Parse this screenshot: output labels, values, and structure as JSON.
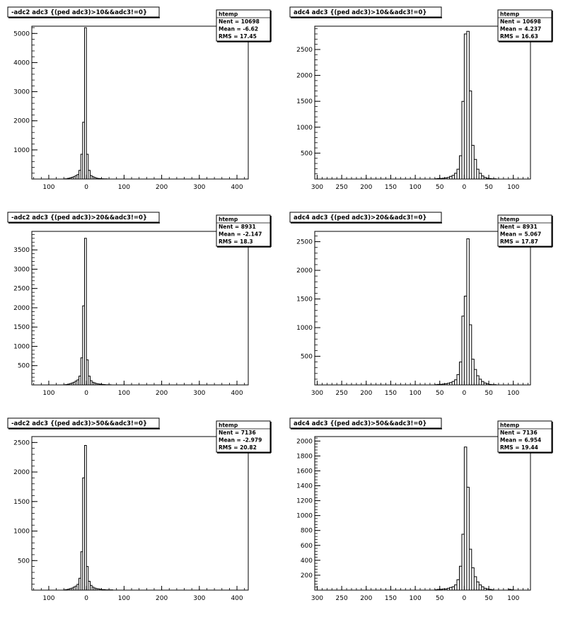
{
  "chart_data": [
    {
      "type": "bar",
      "title": "-adc2 adc3 {(ped adc3)>10&&adc3!=0}",
      "stats": {
        "label": "htemp",
        "entries": "Nent = 10698",
        "mean": "Mean = -6.62",
        "rms": "RMS = 17.45"
      },
      "xlim": [
        -145,
        430
      ],
      "ylim": [
        0,
        5250
      ],
      "xticks": [
        -100,
        0,
        100,
        200,
        300,
        400
      ],
      "xtick_labels": [
        "100",
        "0",
        "100",
        "200",
        "300",
        "400"
      ],
      "yticks": [
        1000,
        2000,
        3000,
        4000,
        5000
      ],
      "ytick_labels": [
        "1000",
        "2000",
        "3000",
        "4000",
        "5000"
      ],
      "bin_width": 5,
      "bins": [
        [
          -60,
          5
        ],
        [
          -55,
          10
        ],
        [
          -50,
          25
        ],
        [
          -45,
          40
        ],
        [
          -40,
          60
        ],
        [
          -35,
          80
        ],
        [
          -30,
          120
        ],
        [
          -25,
          150
        ],
        [
          -20,
          300
        ],
        [
          -15,
          850
        ],
        [
          -10,
          1950
        ],
        [
          -5,
          5200
        ],
        [
          0,
          850
        ],
        [
          5,
          300
        ],
        [
          10,
          120
        ],
        [
          15,
          80
        ],
        [
          20,
          50
        ],
        [
          25,
          30
        ],
        [
          30,
          20
        ],
        [
          35,
          15
        ],
        [
          40,
          10
        ],
        [
          45,
          5
        ],
        [
          50,
          5
        ]
      ]
    },
    {
      "type": "bar",
      "title": "adc4 adc3 {(ped adc3)>10&&adc3!=0}",
      "stats": {
        "label": "htemp",
        "entries": "Nent = 10698",
        "mean": "Mean = 4.237",
        "rms": "RMS = 16.63"
      },
      "xlim": [
        -305,
        135
      ],
      "ylim": [
        0,
        2950
      ],
      "xticks": [
        -300,
        -250,
        -200,
        -150,
        -100,
        -50,
        0,
        50,
        100
      ],
      "xtick_labels": [
        "300",
        "250",
        "200",
        "150",
        "100",
        "50",
        "0",
        "50",
        "100"
      ],
      "yticks": [
        500,
        1000,
        1500,
        2000,
        2500
      ],
      "ytick_labels": [
        "500",
        "1000",
        "1500",
        "2000",
        "2500"
      ],
      "bin_width": 5,
      "bins": [
        [
          -60,
          5
        ],
        [
          -55,
          10
        ],
        [
          -50,
          10
        ],
        [
          -45,
          15
        ],
        [
          -40,
          20
        ],
        [
          -35,
          30
        ],
        [
          -30,
          50
        ],
        [
          -25,
          70
        ],
        [
          -20,
          110
        ],
        [
          -15,
          190
        ],
        [
          -10,
          450
        ],
        [
          -5,
          1500
        ],
        [
          0,
          2800
        ],
        [
          5,
          2850
        ],
        [
          10,
          1700
        ],
        [
          15,
          650
        ],
        [
          20,
          380
        ],
        [
          25,
          190
        ],
        [
          30,
          110
        ],
        [
          35,
          60
        ],
        [
          40,
          30
        ],
        [
          45,
          15
        ],
        [
          50,
          10
        ],
        [
          55,
          5
        ],
        [
          60,
          5
        ]
      ]
    },
    {
      "type": "bar",
      "title": "-adc2 adc3 {(ped adc3)>20&&adc3!=0}",
      "stats": {
        "label": "htemp",
        "entries": "Nent = 8931",
        "mean": "Mean = -2.147",
        "rms": "RMS = 18.3"
      },
      "xlim": [
        -145,
        430
      ],
      "ylim": [
        0,
        3980
      ],
      "xticks": [
        -100,
        0,
        100,
        200,
        300,
        400
      ],
      "xtick_labels": [
        "100",
        "0",
        "100",
        "200",
        "300",
        "400"
      ],
      "yticks": [
        500,
        1000,
        1500,
        2000,
        2500,
        3000,
        3500
      ],
      "ytick_labels": [
        "500",
        "1000",
        "1500",
        "2000",
        "2500",
        "3000",
        "3500"
      ],
      "bin_width": 5,
      "bins": [
        [
          -60,
          5
        ],
        [
          -55,
          10
        ],
        [
          -50,
          20
        ],
        [
          -45,
          35
        ],
        [
          -40,
          50
        ],
        [
          -35,
          70
        ],
        [
          -30,
          100
        ],
        [
          -25,
          130
        ],
        [
          -20,
          230
        ],
        [
          -15,
          700
        ],
        [
          -10,
          2050
        ],
        [
          -5,
          3800
        ],
        [
          0,
          650
        ],
        [
          5,
          230
        ],
        [
          10,
          110
        ],
        [
          15,
          70
        ],
        [
          20,
          50
        ],
        [
          25,
          35
        ],
        [
          30,
          25
        ],
        [
          35,
          20
        ],
        [
          40,
          15
        ],
        [
          45,
          10
        ],
        [
          50,
          5
        ],
        [
          55,
          5
        ],
        [
          60,
          5
        ]
      ]
    },
    {
      "type": "bar",
      "title": "adc4 adc3 {(ped adc3)>20&&adc3!=0}",
      "stats": {
        "label": "htemp",
        "entries": "Nent = 8931",
        "mean": "Mean = 5.067",
        "rms": "RMS = 17.87"
      },
      "xlim": [
        -305,
        135
      ],
      "ylim": [
        0,
        2680
      ],
      "xticks": [
        -300,
        -250,
        -200,
        -150,
        -100,
        -50,
        0,
        50,
        100
      ],
      "xtick_labels": [
        "300",
        "250",
        "200",
        "150",
        "100",
        "50",
        "0",
        "50",
        "100"
      ],
      "yticks": [
        500,
        1000,
        1500,
        2000,
        2500
      ],
      "ytick_labels": [
        "500",
        "1000",
        "1500",
        "2000",
        "2500"
      ],
      "bin_width": 5,
      "bins": [
        [
          -60,
          5
        ],
        [
          -55,
          10
        ],
        [
          -50,
          10
        ],
        [
          -45,
          15
        ],
        [
          -40,
          20
        ],
        [
          -35,
          30
        ],
        [
          -30,
          40
        ],
        [
          -25,
          60
        ],
        [
          -20,
          90
        ],
        [
          -15,
          180
        ],
        [
          -10,
          400
        ],
        [
          -5,
          1200
        ],
        [
          0,
          1550
        ],
        [
          5,
          2550
        ],
        [
          10,
          1050
        ],
        [
          15,
          450
        ],
        [
          20,
          270
        ],
        [
          25,
          160
        ],
        [
          30,
          100
        ],
        [
          35,
          60
        ],
        [
          40,
          35
        ],
        [
          45,
          20
        ],
        [
          50,
          10
        ],
        [
          55,
          5
        ],
        [
          60,
          5
        ]
      ]
    },
    {
      "type": "bar",
      "title": "-adc2 adc3 {(ped adc3)>50&&adc3!=0}",
      "stats": {
        "label": "htemp",
        "entries": "Nent = 7136",
        "mean": "Mean = -2.979",
        "rms": "RMS = 20.82"
      },
      "xlim": [
        -145,
        430
      ],
      "ylim": [
        0,
        2600
      ],
      "xticks": [
        -100,
        0,
        100,
        200,
        300,
        400
      ],
      "xtick_labels": [
        "100",
        "0",
        "100",
        "200",
        "300",
        "400"
      ],
      "yticks": [
        500,
        1000,
        1500,
        2000,
        2500
      ],
      "ytick_labels": [
        "500",
        "1000",
        "1500",
        "2000",
        "2500"
      ],
      "bin_width": 5,
      "bins": [
        [
          -60,
          5
        ],
        [
          -55,
          10
        ],
        [
          -50,
          15
        ],
        [
          -45,
          25
        ],
        [
          -40,
          35
        ],
        [
          -35,
          50
        ],
        [
          -30,
          70
        ],
        [
          -25,
          100
        ],
        [
          -20,
          200
        ],
        [
          -15,
          650
        ],
        [
          -10,
          1900
        ],
        [
          -5,
          2450
        ],
        [
          0,
          400
        ],
        [
          5,
          150
        ],
        [
          10,
          80
        ],
        [
          15,
          50
        ],
        [
          20,
          35
        ],
        [
          25,
          25
        ],
        [
          30,
          20
        ],
        [
          35,
          15
        ],
        [
          40,
          10
        ],
        [
          45,
          10
        ],
        [
          50,
          5
        ],
        [
          55,
          5
        ],
        [
          60,
          5
        ],
        [
          65,
          5
        ]
      ]
    },
    {
      "type": "bar",
      "title": "adc4 adc3 {(ped adc3)>50&&adc3!=0}",
      "stats": {
        "label": "htemp",
        "entries": "Nent = 7136",
        "mean": "Mean = 6.954",
        "rms": "RMS = 19.44"
      },
      "xlim": [
        -305,
        135
      ],
      "ylim": [
        0,
        2060
      ],
      "xticks": [
        -300,
        -250,
        -200,
        -150,
        -100,
        -50,
        0,
        50,
        100
      ],
      "xtick_labels": [
        "300",
        "250",
        "200",
        "150",
        "100",
        "50",
        "0",
        "50",
        "100"
      ],
      "yticks": [
        200,
        400,
        600,
        800,
        1000,
        1200,
        1400,
        1600,
        1800,
        2000
      ],
      "ytick_labels": [
        "200",
        "400",
        "600",
        "800",
        "1000",
        "1200",
        "1400",
        "1600",
        "1800",
        "2000"
      ],
      "bin_width": 5,
      "bins": [
        [
          -60,
          5
        ],
        [
          -55,
          10
        ],
        [
          -50,
          10
        ],
        [
          -45,
          15
        ],
        [
          -40,
          15
        ],
        [
          -35,
          25
        ],
        [
          -30,
          35
        ],
        [
          -25,
          45
        ],
        [
          -20,
          70
        ],
        [
          -15,
          140
        ],
        [
          -10,
          320
        ],
        [
          -5,
          750
        ],
        [
          0,
          1920
        ],
        [
          5,
          1380
        ],
        [
          10,
          550
        ],
        [
          15,
          300
        ],
        [
          20,
          180
        ],
        [
          25,
          110
        ],
        [
          30,
          70
        ],
        [
          35,
          45
        ],
        [
          40,
          25
        ],
        [
          45,
          15
        ],
        [
          50,
          10
        ],
        [
          55,
          5
        ],
        [
          90,
          10
        ],
        [
          95,
          5
        ]
      ]
    }
  ]
}
